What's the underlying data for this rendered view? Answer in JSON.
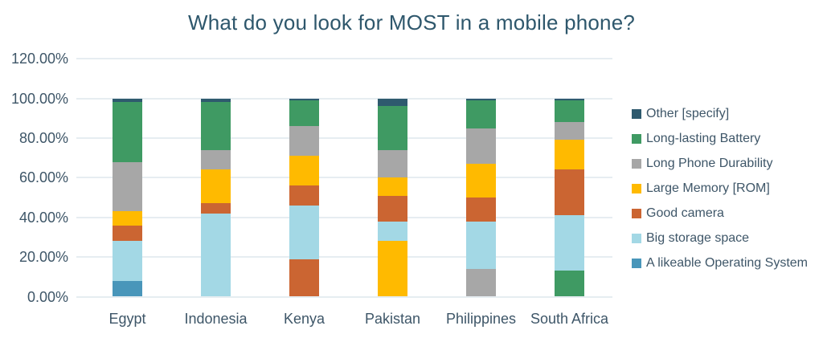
{
  "chart_data": {
    "type": "bar",
    "stacked": true,
    "title": "What do you look for MOST in a mobile phone?",
    "title_color": "#2E576C",
    "text_color": "#3E5668",
    "gridline_color": "#E6EDF1",
    "grid": true,
    "legend_position": "right",
    "categories": [
      "Egypt",
      "Indonesia",
      "Kenya",
      "Pakistan",
      "Philippines",
      "South Africa"
    ],
    "y_axis": {
      "min": 0,
      "max": 120,
      "step": 20,
      "unit": "percent",
      "tick_labels": [
        "0.00%",
        "20.00%",
        "40.00%",
        "60.00%",
        "80.00%",
        "100.00%",
        "120.00%"
      ]
    },
    "legend": [
      {
        "label": "Other [specify]",
        "color": "#2E5A6E"
      },
      {
        "label": "Long-lasting Battery",
        "color": "#3F9A63"
      },
      {
        "label": "Long Phone Durability",
        "color": "#A7A7A7"
      },
      {
        "label": "Large Memory [ROM]",
        "color": "#FFBA00"
      },
      {
        "label": "Good camera",
        "color": "#CB6532"
      },
      {
        "label": "Big storage space",
        "color": "#A3D8E5"
      },
      {
        "label": "A likeable Operating System",
        "color": "#4996BA"
      }
    ],
    "series_colors": {
      "Other [specify]": "#2E5A6E",
      "Long-lasting Battery": "#3F9A63",
      "Long Phone Durability": "#A7A7A7",
      "Large Memory [ROM]": "#FFBA00",
      "Good camera": "#CB6532",
      "Big storage space": "#A3D8E5",
      "A likeable Operating System": "#4996BA"
    },
    "bars": [
      {
        "category": "Egypt",
        "segments_bottom_to_top": [
          {
            "series": "A likeable Operating System",
            "value": 8
          },
          {
            "series": "Big storage space",
            "value": 20
          },
          {
            "series": "Good camera",
            "value": 8
          },
          {
            "series": "Large Memory [ROM]",
            "value": 7
          },
          {
            "series": "Long Phone Durability",
            "value": 25
          },
          {
            "series": "Long-lasting Battery",
            "value": 30
          },
          {
            "series": "Other [specify]",
            "value": 2
          }
        ]
      },
      {
        "category": "Indonesia",
        "segments_bottom_to_top": [
          {
            "series": "Big storage space",
            "value": 42
          },
          {
            "series": "Good camera",
            "value": 5
          },
          {
            "series": "Large Memory [ROM]",
            "value": 17
          },
          {
            "series": "Long Phone Durability",
            "value": 10
          },
          {
            "series": "Long-lasting Battery",
            "value": 24
          },
          {
            "series": "Other [specify]",
            "value": 2
          }
        ]
      },
      {
        "category": "Kenya",
        "segments_bottom_to_top": [
          {
            "series": "Good camera",
            "value": 19
          },
          {
            "series": "Big storage space",
            "value": 27
          },
          {
            "series": "Good camera",
            "value": 10
          },
          {
            "series": "Large Memory [ROM]",
            "value": 15
          },
          {
            "series": "Long Phone Durability",
            "value": 15
          },
          {
            "series": "Long-lasting Battery",
            "value": 13
          },
          {
            "series": "Other [specify]",
            "value": 1
          }
        ]
      },
      {
        "category": "Pakistan",
        "segments_bottom_to_top": [
          {
            "series": "Large Memory [ROM]",
            "value": 28
          },
          {
            "series": "Big storage space",
            "value": 10
          },
          {
            "series": "Good camera",
            "value": 13
          },
          {
            "series": "Large Memory [ROM]",
            "value": 9
          },
          {
            "series": "Long Phone Durability",
            "value": 14
          },
          {
            "series": "Long-lasting Battery",
            "value": 22
          },
          {
            "series": "Other [specify]",
            "value": 4
          }
        ]
      },
      {
        "category": "Philippines",
        "segments_bottom_to_top": [
          {
            "series": "Long Phone Durability",
            "value": 14
          },
          {
            "series": "Big storage space",
            "value": 24
          },
          {
            "series": "Good camera",
            "value": 12
          },
          {
            "series": "Large Memory [ROM]",
            "value": 17
          },
          {
            "series": "Long Phone Durability",
            "value": 18
          },
          {
            "series": "Long-lasting Battery",
            "value": 14
          },
          {
            "series": "Other [specify]",
            "value": 1
          }
        ]
      },
      {
        "category": "South Africa",
        "segments_bottom_to_top": [
          {
            "series": "Long-lasting Battery",
            "value": 13
          },
          {
            "series": "Big storage space",
            "value": 28
          },
          {
            "series": "Good camera",
            "value": 23
          },
          {
            "series": "Large Memory [ROM]",
            "value": 15
          },
          {
            "series": "Long Phone Durability",
            "value": 9
          },
          {
            "series": "Long-lasting Battery",
            "value": 11
          },
          {
            "series": "Other [specify]",
            "value": 1
          }
        ]
      }
    ]
  }
}
